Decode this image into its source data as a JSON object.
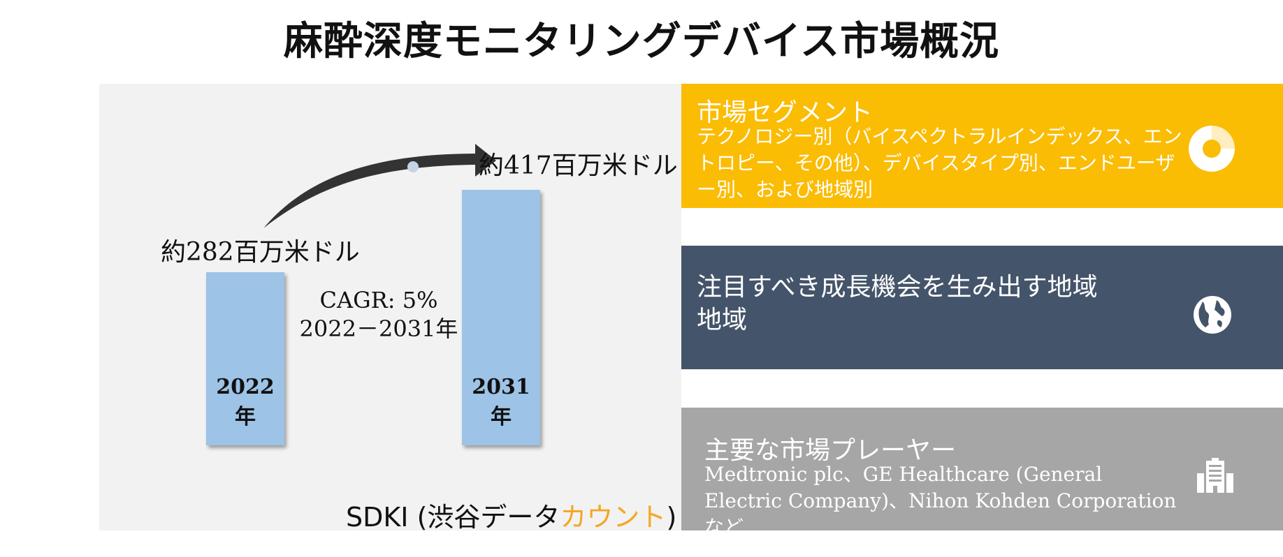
{
  "title": "麻酔深度モニタリングデバイス市場概況",
  "chart_data": {
    "type": "bar",
    "categories": [
      "2022年",
      "2031年"
    ],
    "values": [
      282,
      417
    ],
    "value_labels": [
      "約282百万米ドル",
      "約417百万米ドル"
    ],
    "annotations": [
      "CAGR: 5%",
      "2022－2031年"
    ],
    "ylim": [
      0,
      417
    ]
  },
  "brand": {
    "prefix": "SDKI (渋谷データ",
    "accent": "カウント",
    "suffix": ")"
  },
  "segments": {
    "title": "市場セグメント",
    "body": "テクノロジー別（バイスペクトラルインデックス、エントロピー、その他）、デバイスタイプ別、エンドユーザー別、および地域別",
    "icon": "donut-chart-icon"
  },
  "regions": {
    "title_line1": "注目すべき成長機会を生み出す地域",
    "title_line2": "地域",
    "icon": "globe-icon"
  },
  "players": {
    "title": "主要な市場プレーヤー",
    "body": "Medtronic plc、GE Healthcare (General Electric Company)、Nihon Kohden Corporationなど",
    "icon": "building-icon"
  },
  "colors": {
    "bar": "#9dc3e6",
    "segments_bg": "#fbbc04",
    "regions_bg": "#44546a",
    "players_bg": "#a6a6a6",
    "brand_accent": "#f5a623"
  }
}
